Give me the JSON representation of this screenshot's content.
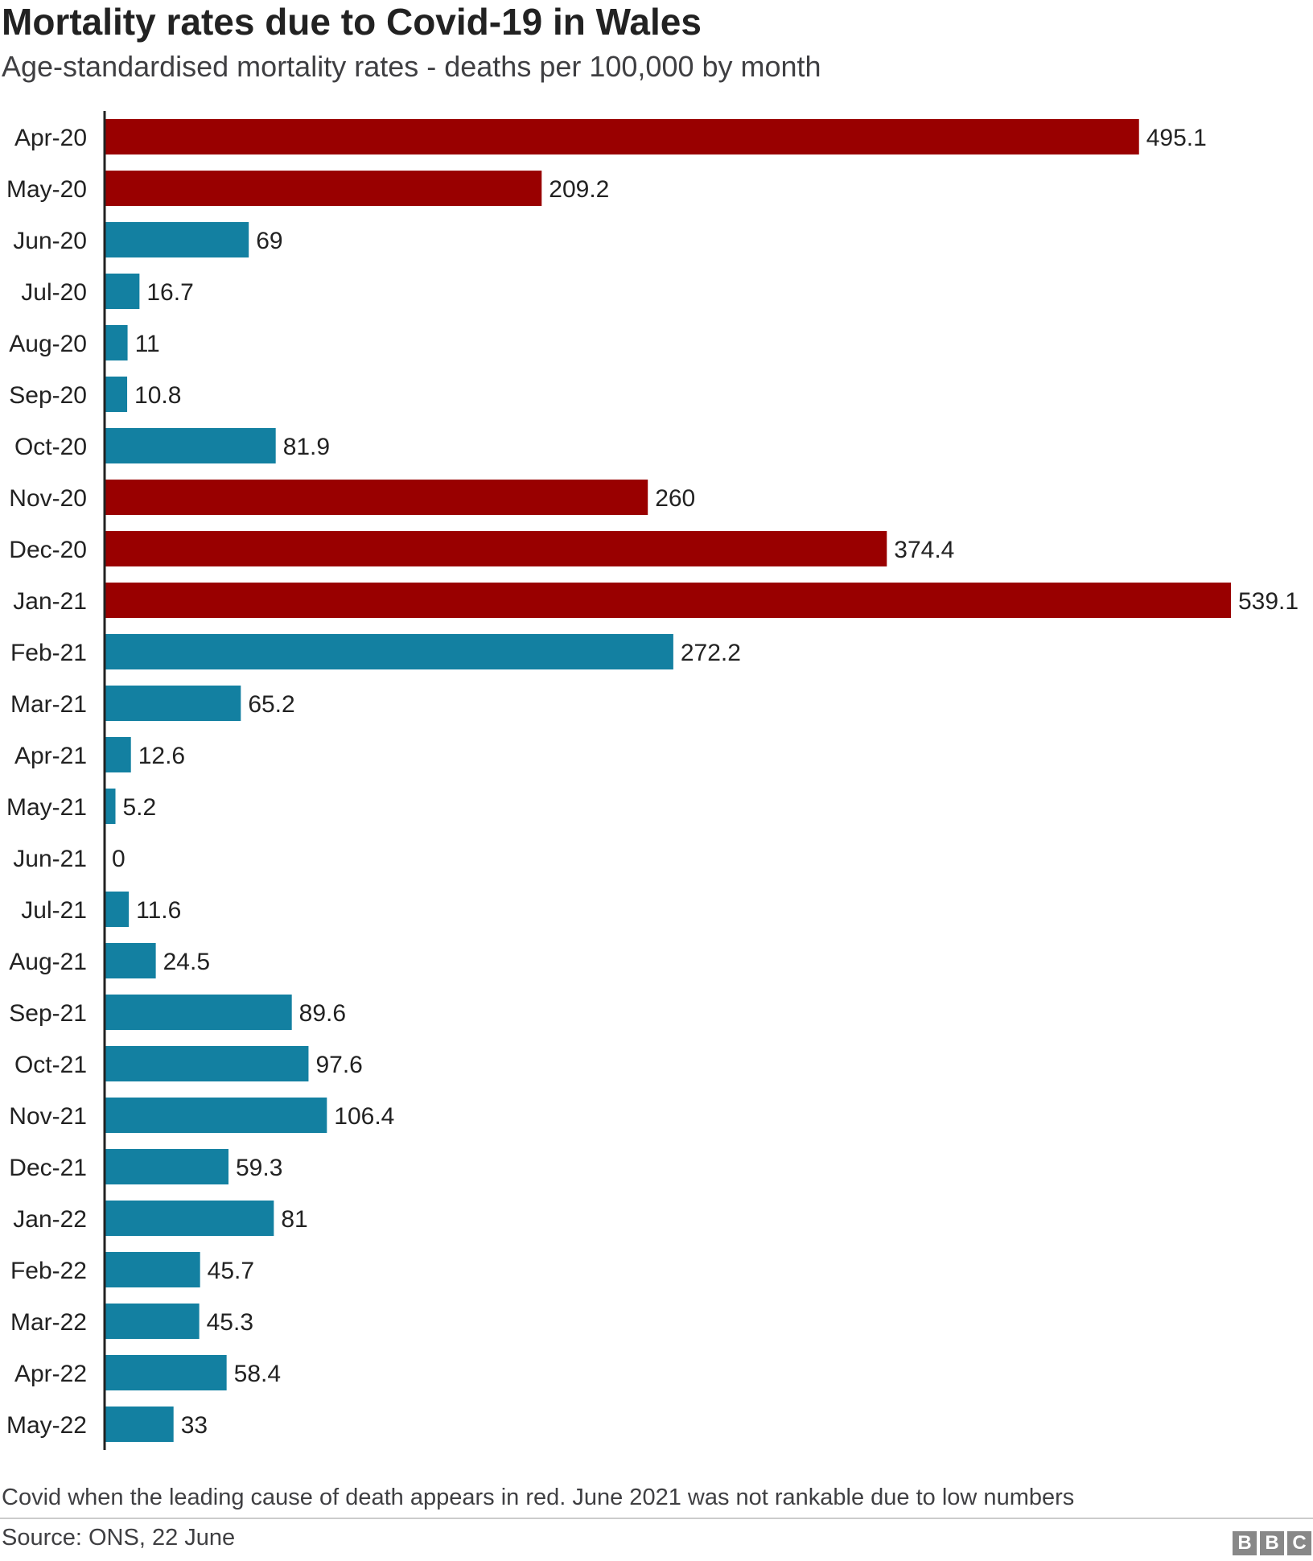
{
  "chart_data": {
    "type": "bar",
    "orientation": "horizontal",
    "title": "Mortality rates due to Covid-19 in Wales",
    "subtitle": "Age-standardised mortality rates - deaths per 100,000 by month",
    "categories": [
      "Apr-20",
      "May-20",
      "Jun-20",
      "Jul-20",
      "Aug-20",
      "Sep-20",
      "Oct-20",
      "Nov-20",
      "Dec-20",
      "Jan-21",
      "Feb-21",
      "Mar-21",
      "Apr-21",
      "May-21",
      "Jun-21",
      "Jul-21",
      "Aug-21",
      "Sep-21",
      "Oct-21",
      "Nov-21",
      "Dec-21",
      "Jan-22",
      "Feb-22",
      "Mar-22",
      "Apr-22",
      "May-22"
    ],
    "values": [
      495.1,
      209.2,
      69,
      16.7,
      11,
      10.8,
      81.9,
      260,
      374.4,
      539.1,
      272.2,
      65.2,
      12.6,
      5.2,
      0,
      11.6,
      24.5,
      89.6,
      97.6,
      106.4,
      59.3,
      81,
      45.7,
      45.3,
      58.4,
      33
    ],
    "value_labels": [
      "495.1",
      "209.2",
      "69",
      "16.7",
      "11",
      "10.8",
      "81.9",
      "260",
      "374.4",
      "539.1",
      "272.2",
      "65.2",
      "12.6",
      "5.2",
      "0",
      "11.6",
      "24.5",
      "89.6",
      "97.6",
      "106.4",
      "59.3",
      "81",
      "45.7",
      "45.3",
      "58.4",
      "33"
    ],
    "leading_cause": [
      true,
      true,
      false,
      false,
      false,
      false,
      false,
      true,
      true,
      true,
      false,
      false,
      false,
      false,
      false,
      false,
      false,
      false,
      false,
      false,
      false,
      false,
      false,
      false,
      false,
      false
    ],
    "colors": {
      "leading": "#990000",
      "other": "#1380a1"
    },
    "xlim": [
      0,
      539.1
    ],
    "grid": false,
    "legend": "none"
  },
  "footnote": "Covid when the leading cause of death appears in red. June 2021 was not rankable due to low numbers",
  "source": "Source: ONS, 22 June",
  "logo": {
    "letters": [
      "B",
      "B",
      "C"
    ]
  }
}
